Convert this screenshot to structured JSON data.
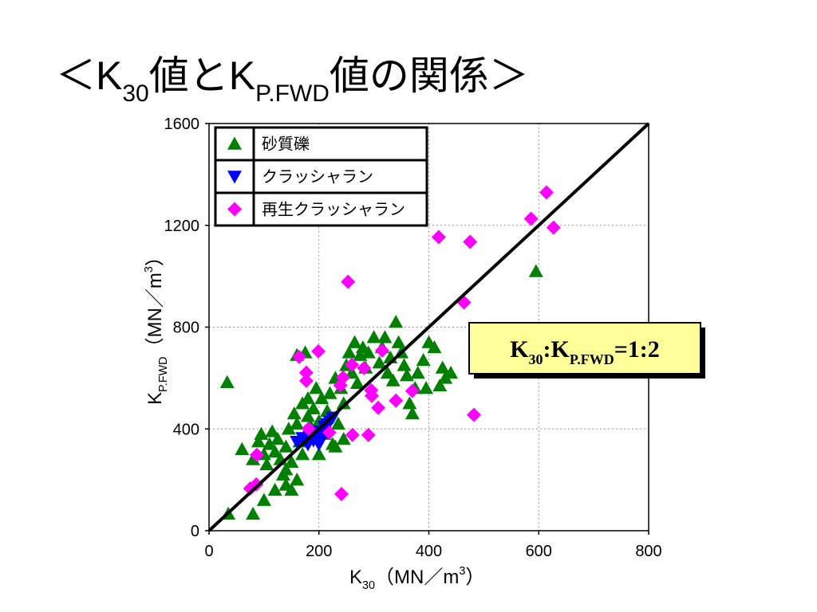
{
  "chart_data": {
    "type": "scatter",
    "title": [
      {
        "text": "＜K"
      },
      {
        "sub": "30"
      },
      {
        "text": "値とK"
      },
      {
        "sub": "P.FWD"
      },
      {
        "text": "値の関係＞"
      }
    ],
    "x_label": [
      {
        "text": "K"
      },
      {
        "sub": "30"
      },
      {
        "text": "（MN／m"
      },
      {
        "sup": "3"
      },
      {
        "text": "）"
      }
    ],
    "y_label": [
      {
        "text": "K"
      },
      {
        "sub": "P.FWD"
      },
      {
        "text": "（MN／m"
      },
      {
        "sup": "3"
      },
      {
        "text": "）"
      }
    ],
    "annotation": [
      {
        "text": "K"
      },
      {
        "sub": "30"
      },
      {
        "text": ":K"
      },
      {
        "sub": "P.FWD"
      },
      {
        "text": "=1:2"
      }
    ],
    "xlim": [
      0,
      800
    ],
    "xticks": [
      0,
      200,
      400,
      600,
      800
    ],
    "ylim": [
      0,
      1600
    ],
    "yticks": [
      0,
      400,
      800,
      1200,
      1600
    ],
    "grid": true,
    "legend": "upper left",
    "reference_line": {
      "x": [
        0,
        800
      ],
      "y": [
        0,
        1600
      ],
      "color": "#000000"
    },
    "series": [
      {
        "name": "砂質礫",
        "color": "#008000",
        "marker": "triangle-up",
        "x": [
          33,
          595,
          35,
          80,
          60,
          80,
          90,
          95,
          100,
          105,
          110,
          115,
          120,
          125,
          130,
          135,
          140,
          140,
          145,
          150,
          150,
          155,
          160,
          160,
          165,
          170,
          170,
          175,
          180,
          180,
          185,
          190,
          195,
          200,
          205,
          210,
          215,
          220,
          225,
          230,
          235,
          240,
          245,
          250,
          255,
          260,
          265,
          270,
          275,
          280,
          285,
          290,
          300,
          310,
          315,
          320,
          325,
          330,
          335,
          340,
          345,
          350,
          355,
          360,
          365,
          370,
          375,
          380,
          390,
          395,
          400,
          410,
          420,
          425,
          430,
          440,
          200,
          230,
          245,
          160,
          175,
          100,
          120,
          140
        ],
        "y": [
          583,
          1019,
          66,
          66,
          320,
          280,
          350,
          380,
          300,
          260,
          340,
          390,
          310,
          360,
          280,
          220,
          330,
          180,
          400,
          160,
          270,
          460,
          200,
          420,
          350,
          500,
          300,
          380,
          450,
          520,
          410,
          480,
          560,
          430,
          520,
          380,
          470,
          540,
          340,
          600,
          420,
          560,
          500,
          650,
          700,
          620,
          740,
          580,
          690,
          720,
          640,
          700,
          760,
          660,
          720,
          760,
          620,
          680,
          590,
          820,
          740,
          700,
          650,
          610,
          500,
          460,
          560,
          620,
          670,
          560,
          740,
          720,
          570,
          640,
          600,
          620,
          300,
          330,
          360,
          690,
          700,
          120,
          160,
          240
        ]
      },
      {
        "name": "クラッシャラン",
        "color": "#0000ff",
        "marker": "triangle-down",
        "x": [
          160,
          170,
          180,
          185,
          190,
          195,
          200,
          205,
          210,
          215,
          220,
          225,
          200,
          175
        ],
        "y": [
          350,
          365,
          340,
          380,
          355,
          370,
          390,
          360,
          410,
          420,
          430,
          445,
          340,
          355
        ]
      },
      {
        "name": "再生クラッシャラン",
        "color": "#ff00ff",
        "marker": "diamond",
        "x": [
          614,
          586,
          627,
          418,
          475,
          253,
          464,
          315,
          199,
          164,
          177,
          177,
          244,
          260,
          282,
          239,
          295,
          296,
          308,
          340,
          370,
          482,
          219,
          181,
          290,
          261,
          87,
          241,
          86,
          75
        ],
        "y": [
          1329,
          1226,
          1191,
          1154,
          1135,
          978,
          897,
          708,
          705,
          683,
          621,
          589,
          602,
          652,
          639,
          571,
          552,
          530,
          483,
          511,
          549,
          455,
          386,
          401,
          376,
          376,
          298,
          144,
          182,
          166
        ]
      }
    ]
  }
}
